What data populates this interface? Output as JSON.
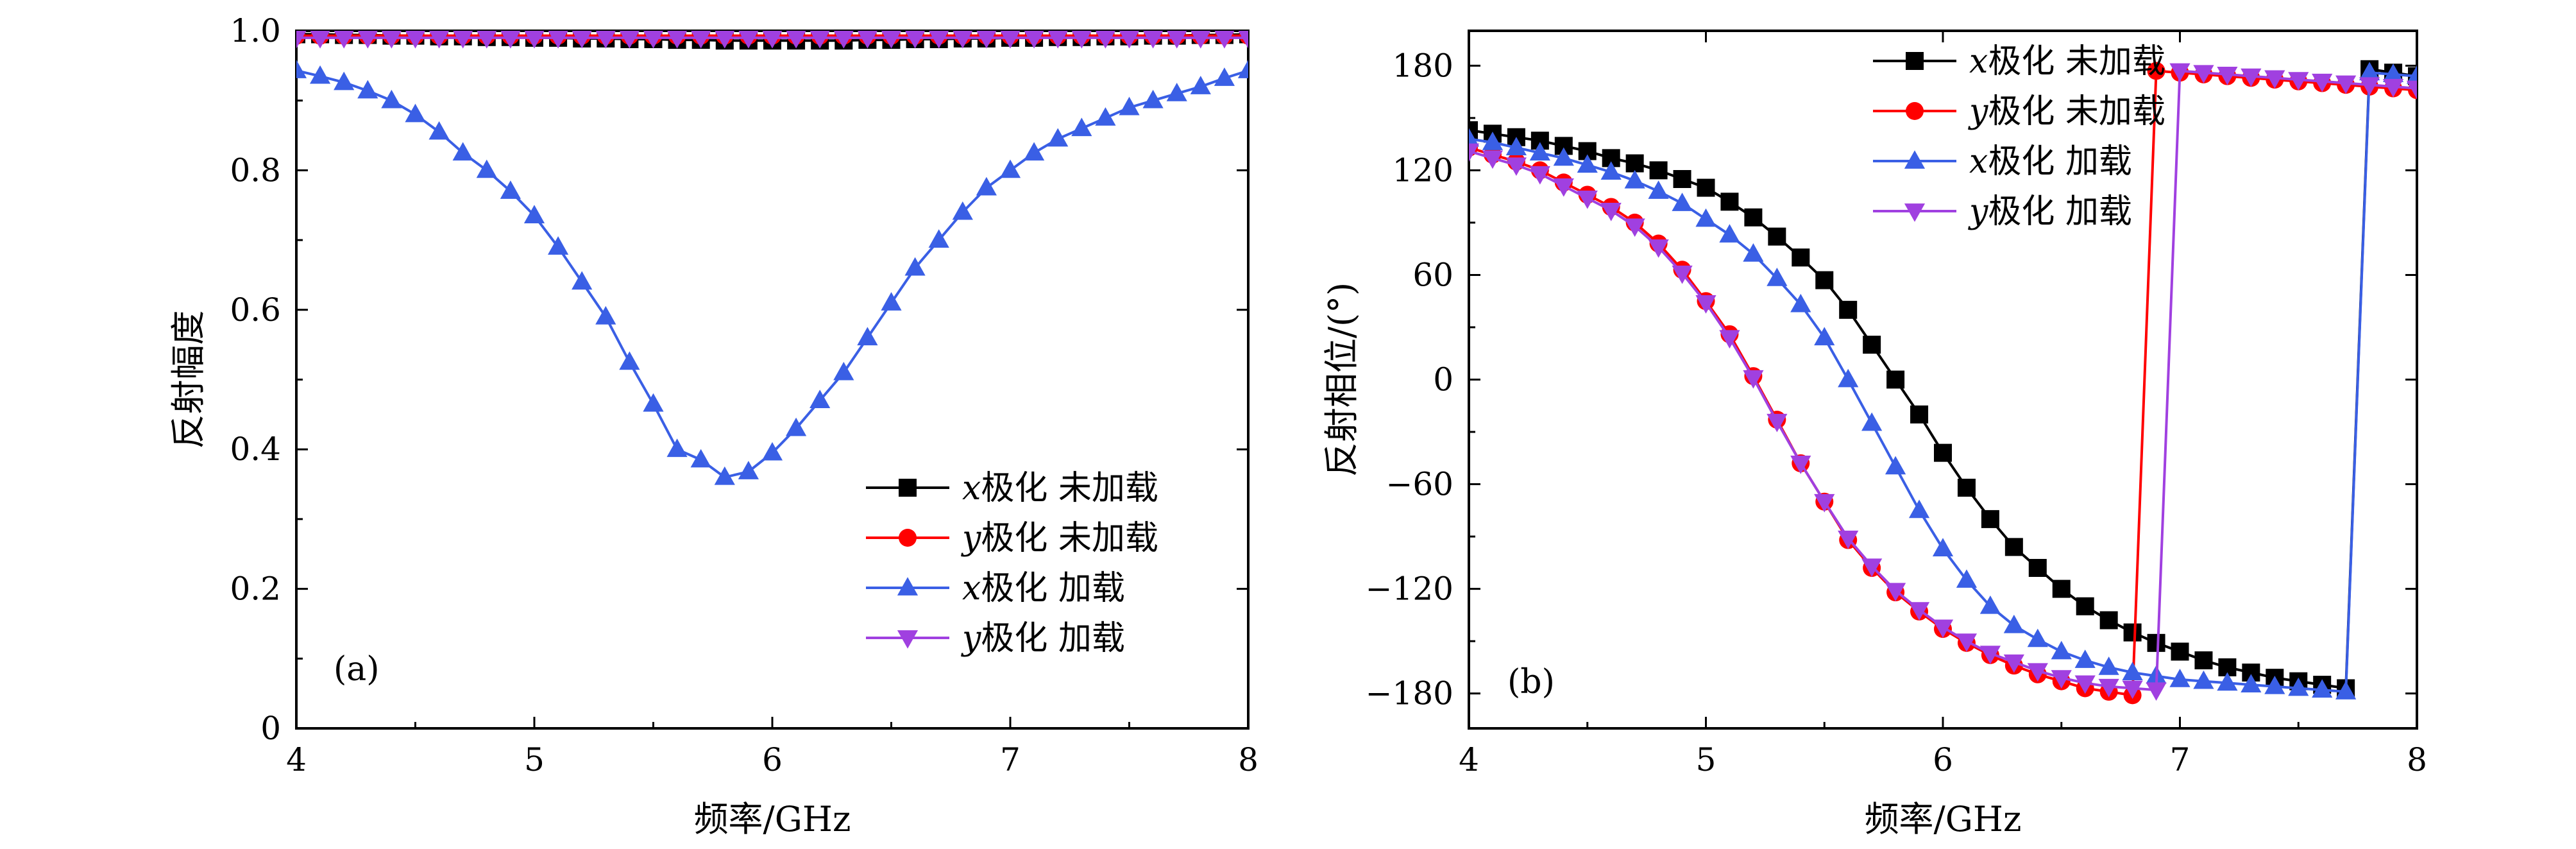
{
  "chart_data": [
    {
      "type": "line",
      "panel_label": "(a)",
      "xlabel": "频率/GHz",
      "ylabel": "反射幅度",
      "xlim": [
        4,
        8
      ],
      "ylim": [
        0,
        1.0
      ],
      "xticks": [
        4,
        5,
        6,
        7,
        8
      ],
      "yticks": [
        0,
        0.2,
        0.4,
        0.6,
        0.8,
        1.0
      ],
      "ytick_labels": [
        "0",
        "0.2",
        "0.4",
        "0.6",
        "0.8",
        "1.0"
      ],
      "legend_position": "bottom-right",
      "x": [
        4.0,
        4.1,
        4.2,
        4.3,
        4.4,
        4.5,
        4.6,
        4.7,
        4.8,
        4.9,
        5.0,
        5.1,
        5.2,
        5.3,
        5.4,
        5.5,
        5.6,
        5.7,
        5.8,
        5.9,
        6.0,
        6.1,
        6.2,
        6.3,
        6.4,
        6.5,
        6.6,
        6.7,
        6.8,
        6.9,
        7.0,
        7.1,
        7.2,
        7.3,
        7.4,
        7.5,
        7.6,
        7.7,
        7.8,
        7.9,
        8.0
      ],
      "series": [
        {
          "name": "x极化 未加载",
          "prefix": "x",
          "suffix": "极化 未加载",
          "color": "#000000",
          "marker": "square",
          "values": [
            0.995,
            0.995,
            0.994,
            0.994,
            0.993,
            0.993,
            0.992,
            0.992,
            0.991,
            0.991,
            0.99,
            0.99,
            0.989,
            0.989,
            0.988,
            0.988,
            0.987,
            0.987,
            0.986,
            0.986,
            0.986,
            0.986,
            0.986,
            0.986,
            0.987,
            0.987,
            0.988,
            0.988,
            0.989,
            0.989,
            0.99,
            0.99,
            0.991,
            0.991,
            0.992,
            0.992,
            0.993,
            0.993,
            0.994,
            0.994,
            0.995
          ]
        },
        {
          "name": "y极化 未加载",
          "prefix": "y",
          "suffix": "极化 未加载",
          "color": "#ff0000",
          "marker": "circle",
          "values": [
            0.993,
            0.993,
            0.993,
            0.993,
            0.993,
            0.993,
            0.993,
            0.993,
            0.993,
            0.993,
            0.993,
            0.993,
            0.993,
            0.993,
            0.993,
            0.993,
            0.993,
            0.993,
            0.993,
            0.993,
            0.993,
            0.993,
            0.993,
            0.993,
            0.993,
            0.993,
            0.993,
            0.993,
            0.993,
            0.993,
            0.993,
            0.993,
            0.993,
            0.993,
            0.993,
            0.993,
            0.993,
            0.993,
            0.993,
            0.993,
            0.993
          ]
        },
        {
          "name": "x极化 加载",
          "prefix": "x",
          "suffix": "极化 加载",
          "color": "#3a5fe5",
          "marker": "triangle-up",
          "values": [
            0.943,
            0.935,
            0.926,
            0.914,
            0.9,
            0.88,
            0.855,
            0.825,
            0.8,
            0.77,
            0.735,
            0.69,
            0.64,
            0.59,
            0.525,
            0.465,
            0.4,
            0.385,
            0.36,
            0.368,
            0.395,
            0.43,
            0.47,
            0.51,
            0.56,
            0.61,
            0.66,
            0.7,
            0.74,
            0.775,
            0.8,
            0.825,
            0.845,
            0.86,
            0.875,
            0.89,
            0.9,
            0.91,
            0.92,
            0.932,
            0.943
          ]
        },
        {
          "name": "y极化 加载",
          "prefix": "y",
          "suffix": "极化 加载",
          "color": "#a040e0",
          "marker": "triangle-down",
          "values": [
            0.99,
            0.99,
            0.99,
            0.99,
            0.99,
            0.99,
            0.99,
            0.99,
            0.99,
            0.99,
            0.99,
            0.99,
            0.99,
            0.99,
            0.99,
            0.99,
            0.99,
            0.99,
            0.99,
            0.99,
            0.99,
            0.99,
            0.99,
            0.99,
            0.99,
            0.99,
            0.99,
            0.99,
            0.99,
            0.99,
            0.99,
            0.99,
            0.99,
            0.99,
            0.99,
            0.99,
            0.99,
            0.99,
            0.99,
            0.99,
            0.99
          ]
        }
      ]
    },
    {
      "type": "line",
      "panel_label": "(b)",
      "xlabel": "频率/GHz",
      "ylabel": "反射相位/(°)",
      "xlim": [
        4,
        8
      ],
      "ylim": [
        -200,
        200
      ],
      "xticks": [
        4,
        5,
        6,
        7,
        8
      ],
      "yticks": [
        -180,
        -120,
        -60,
        0,
        60,
        120,
        180
      ],
      "ytick_labels": [
        "−180",
        "−120",
        "−60",
        "0",
        "60",
        "120",
        "180"
      ],
      "legend_position": "top-right",
      "x": [
        4.0,
        4.1,
        4.2,
        4.3,
        4.4,
        4.5,
        4.6,
        4.7,
        4.8,
        4.9,
        5.0,
        5.1,
        5.2,
        5.3,
        5.4,
        5.5,
        5.6,
        5.7,
        5.8,
        5.9,
        6.0,
        6.1,
        6.2,
        6.3,
        6.4,
        6.5,
        6.6,
        6.7,
        6.8,
        6.9,
        7.0,
        7.1,
        7.2,
        7.3,
        7.4,
        7.5,
        7.6,
        7.7,
        7.8,
        7.9,
        8.0
      ],
      "series": [
        {
          "name": "x极化 未加载",
          "prefix": "x",
          "suffix": "极化 未加载",
          "color": "#000000",
          "marker": "square",
          "values": [
            143,
            141,
            139,
            137,
            134,
            131,
            127,
            124,
            120,
            115,
            110,
            102,
            93,
            82,
            70,
            57,
            40,
            20,
            0,
            -20,
            -42,
            -62,
            -80,
            -96,
            -108,
            -120,
            -130,
            -138,
            -145,
            -151,
            -156,
            -161,
            -165,
            -168,
            -171,
            -173,
            -175,
            -177,
            178,
            176,
            174
          ]
        },
        {
          "name": "y极化 未加载",
          "prefix": "y",
          "suffix": "极化 未加载",
          "color": "#ff0000",
          "marker": "circle",
          "values": [
            133,
            129,
            125,
            120,
            113,
            106,
            99,
            90,
            78,
            63,
            45,
            26,
            2,
            -23,
            -48,
            -70,
            -92,
            -108,
            -122,
            -133,
            -143,
            -151,
            -158,
            -164,
            -169,
            -173,
            -177,
            -179,
            -181,
            177,
            176,
            175,
            174,
            173,
            172,
            171,
            170,
            169,
            168,
            167,
            166
          ]
        },
        {
          "name": "x极化 加载",
          "prefix": "x",
          "suffix": "极化 加载",
          "color": "#3a5fe5",
          "marker": "triangle-up",
          "values": [
            138,
            136,
            133,
            130,
            127,
            123,
            119,
            114,
            108,
            101,
            92,
            83,
            72,
            58,
            43,
            24,
            0,
            -25,
            -50,
            -75,
            -97,
            -115,
            -130,
            -141,
            -149,
            -156,
            -161,
            -165,
            -168,
            -170,
            -172,
            -173,
            -174,
            -175,
            -176,
            -177,
            -178,
            -179,
            176,
            175,
            174
          ]
        },
        {
          "name": "y极化 加载",
          "prefix": "y",
          "suffix": "极化 加载",
          "color": "#a040e0",
          "marker": "triangle-down",
          "values": [
            131,
            127,
            123,
            118,
            111,
            104,
            97,
            88,
            76,
            61,
            44,
            24,
            1,
            -24,
            -48,
            -70,
            -91,
            -107,
            -121,
            -132,
            -142,
            -150,
            -157,
            -162,
            -167,
            -171,
            -174,
            -176,
            -177,
            -178,
            177,
            176,
            175,
            174,
            173,
            172,
            171,
            170,
            169,
            168,
            167
          ]
        }
      ]
    }
  ]
}
